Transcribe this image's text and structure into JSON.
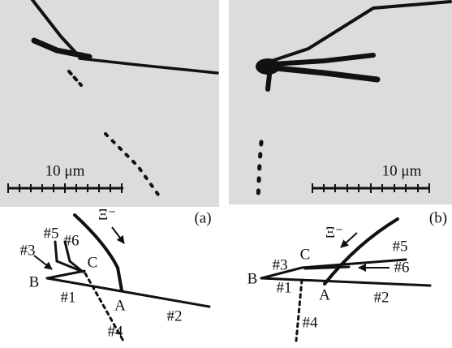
{
  "panels": [
    {
      "scale_label": "10 μm",
      "panel_label": "(a)",
      "diagram": {
        "xi": "Ξ⁻",
        "labels": [
          "#1",
          "#2",
          "#3",
          "#4",
          "#5",
          "#6",
          "A",
          "B",
          "C"
        ]
      }
    },
    {
      "scale_label": "10 μm",
      "panel_label": "(b)",
      "diagram": {
        "xi": "Ξ⁻",
        "labels": [
          "#1",
          "#2",
          "#3",
          "#4",
          "#5",
          "#6",
          "A",
          "B",
          "C"
        ]
      }
    }
  ]
}
